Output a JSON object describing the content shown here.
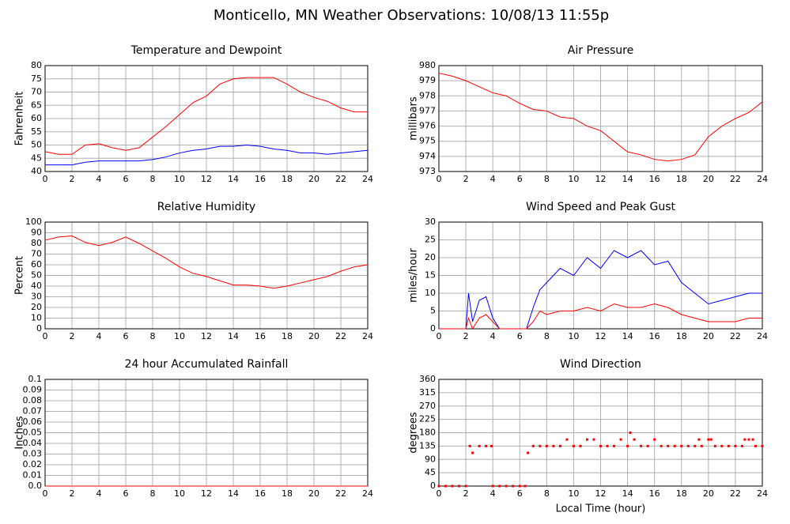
{
  "title": "Monticello, MN Weather Observations: 10/08/13 11:55p",
  "chart_data": [
    {
      "type": "line",
      "title": "Temperature and Dewpoint",
      "ylabel": "Fahrenheit",
      "x": [
        0,
        1,
        2,
        3,
        4,
        5,
        6,
        7,
        8,
        9,
        10,
        11,
        12,
        13,
        14,
        15,
        16,
        17,
        18,
        19,
        20,
        21,
        22,
        23,
        24
      ],
      "series": [
        {
          "color": "#ff0000",
          "values": [
            47.5,
            46.5,
            46.5,
            50,
            50.5,
            49,
            48,
            49,
            53,
            57,
            61.5,
            66,
            68.5,
            73,
            75,
            75.5,
            75.5,
            75.5,
            73,
            70,
            68,
            66.5,
            64,
            62.5,
            62.5
          ]
        },
        {
          "color": "#0000ff",
          "values": [
            42.5,
            42.5,
            42.5,
            43.5,
            44,
            44,
            44,
            44,
            44.5,
            45.5,
            47,
            48,
            48.5,
            49.5,
            49.5,
            50,
            49.5,
            48.5,
            48,
            47,
            47,
            46.5,
            47,
            47.5,
            48
          ]
        }
      ],
      "xlim": [
        0,
        24
      ],
      "xticks": [
        0,
        2,
        4,
        6,
        8,
        10,
        12,
        14,
        16,
        18,
        20,
        22,
        24
      ],
      "ylim": [
        40,
        80
      ],
      "yticks": [
        40,
        45,
        50,
        55,
        60,
        65,
        70,
        75,
        80
      ],
      "grid": true
    },
    {
      "type": "line",
      "title": "Air Pressure",
      "ylabel": "millibars",
      "x": [
        0,
        1,
        2,
        3,
        4,
        5,
        6,
        7,
        8,
        9,
        10,
        11,
        12,
        13,
        14,
        15,
        16,
        17,
        18,
        19,
        20,
        21,
        22,
        23,
        24
      ],
      "series": [
        {
          "color": "#ff0000",
          "values": [
            979.5,
            979.3,
            979,
            978.6,
            978.2,
            978,
            977.5,
            977.1,
            977,
            976.6,
            976.5,
            976,
            975.7,
            975,
            974.3,
            974.1,
            973.8,
            973.7,
            973.8,
            974.1,
            975.3,
            976,
            976.5,
            976.9,
            977.6
          ]
        }
      ],
      "xlim": [
        0,
        24
      ],
      "xticks": [
        0,
        2,
        4,
        6,
        8,
        10,
        12,
        14,
        16,
        18,
        20,
        22,
        24
      ],
      "ylim": [
        973,
        980
      ],
      "yticks": [
        973,
        974,
        975,
        976,
        977,
        978,
        979,
        980
      ],
      "grid": true
    },
    {
      "type": "line",
      "title": "Relative Humidity",
      "ylabel": "Percent",
      "x": [
        0,
        1,
        2,
        3,
        4,
        5,
        6,
        7,
        8,
        9,
        10,
        11,
        12,
        13,
        14,
        15,
        16,
        17,
        18,
        19,
        20,
        21,
        22,
        23,
        24
      ],
      "series": [
        {
          "color": "#ff0000",
          "values": [
            83,
            86,
            87,
            81,
            78,
            81,
            86,
            80,
            73,
            66,
            58,
            52,
            49,
            45,
            41,
            41,
            40,
            38,
            40,
            43,
            46,
            49,
            54,
            58,
            60
          ]
        }
      ],
      "xlim": [
        0,
        24
      ],
      "xticks": [
        0,
        2,
        4,
        6,
        8,
        10,
        12,
        14,
        16,
        18,
        20,
        22,
        24
      ],
      "ylim": [
        0,
        100
      ],
      "yticks": [
        0,
        10,
        20,
        30,
        40,
        50,
        60,
        70,
        80,
        90,
        100
      ],
      "grid": true
    },
    {
      "type": "line",
      "title": "Wind Speed and Peak Gust",
      "ylabel": "miles/hour",
      "x": [
        0,
        1,
        2,
        2.2,
        2.5,
        3,
        3.5,
        4,
        4.5,
        5,
        6,
        6.5,
        7,
        7.5,
        8,
        9,
        10,
        11,
        12,
        13,
        14,
        15,
        16,
        17,
        18,
        19,
        20,
        21,
        22,
        23,
        24
      ],
      "series": [
        {
          "color": "#0000ff",
          "values": [
            0,
            0,
            0,
            10,
            2,
            8,
            9,
            3,
            0,
            0,
            0,
            0,
            6,
            11,
            13,
            17,
            15,
            20,
            17,
            22,
            20,
            22,
            18,
            19,
            13,
            10,
            7,
            8,
            9,
            10,
            10
          ]
        },
        {
          "color": "#ff0000",
          "values": [
            0,
            0,
            0,
            3,
            0,
            3,
            4,
            2,
            0,
            0,
            0,
            0,
            2,
            5,
            4,
            5,
            5,
            6,
            5,
            7,
            6,
            6,
            7,
            6,
            4,
            3,
            2,
            2,
            2,
            3,
            3
          ]
        }
      ],
      "xlim": [
        0,
        24
      ],
      "xticks": [
        0,
        2,
        4,
        6,
        8,
        10,
        12,
        14,
        16,
        18,
        20,
        22,
        24
      ],
      "ylim": [
        0,
        30
      ],
      "yticks": [
        0,
        5,
        10,
        15,
        20,
        25,
        30
      ],
      "grid": true
    },
    {
      "type": "line",
      "title": "24 hour Accumulated Rainfall",
      "ylabel": "Inches",
      "x": [
        0,
        24
      ],
      "series": [
        {
          "color": "#ff0000",
          "values": [
            0,
            0
          ]
        }
      ],
      "xlim": [
        0,
        24
      ],
      "xticks": [
        0,
        2,
        4,
        6,
        8,
        10,
        12,
        14,
        16,
        18,
        20,
        22,
        24
      ],
      "ylim": [
        0,
        0.1
      ],
      "yticks": [
        {
          "value": 0,
          "label": "0.0"
        },
        0.01,
        0.02,
        0.03,
        0.04,
        0.05,
        0.06,
        0.07,
        0.08,
        0.09,
        0.1
      ],
      "grid": true
    },
    {
      "type": "scatter",
      "title": "Wind Direction",
      "ylabel": "degrees",
      "xlabel": "Local Time (hour)",
      "x": [
        0,
        0.5,
        1,
        1.5,
        2,
        2.3,
        2.5,
        3,
        3.5,
        3.9,
        4,
        4.5,
        5,
        5.5,
        6,
        6.4,
        6.6,
        7,
        7.5,
        8,
        8.5,
        9,
        9.5,
        10,
        10.5,
        11,
        11.5,
        12,
        12.5,
        13,
        13.5,
        14,
        14.2,
        14.5,
        15,
        15.5,
        16,
        16.5,
        17,
        17.5,
        18,
        18.5,
        19,
        19.3,
        19.5,
        20,
        20.2,
        20.5,
        21,
        21.5,
        22,
        22.5,
        22.7,
        23,
        23.3,
        23.5,
        24
      ],
      "series": [
        {
          "color": "#ff0000",
          "values": [
            0,
            0,
            0,
            0,
            0,
            135,
            112,
            135,
            135,
            135,
            0,
            0,
            0,
            0,
            0,
            0,
            112,
            135,
            135,
            135,
            135,
            135,
            157,
            135,
            135,
            157,
            157,
            135,
            135,
            135,
            157,
            135,
            180,
            157,
            135,
            135,
            157,
            135,
            135,
            135,
            135,
            135,
            135,
            157,
            135,
            157,
            157,
            135,
            135,
            135,
            135,
            135,
            157,
            157,
            157,
            135,
            135
          ]
        }
      ],
      "xlim": [
        0,
        24
      ],
      "xticks": [
        0,
        2,
        4,
        6,
        8,
        10,
        12,
        14,
        16,
        18,
        20,
        22,
        24
      ],
      "ylim": [
        0,
        360
      ],
      "yticks": [
        0,
        45,
        90,
        135,
        180,
        225,
        270,
        315,
        360
      ],
      "grid": true
    }
  ]
}
